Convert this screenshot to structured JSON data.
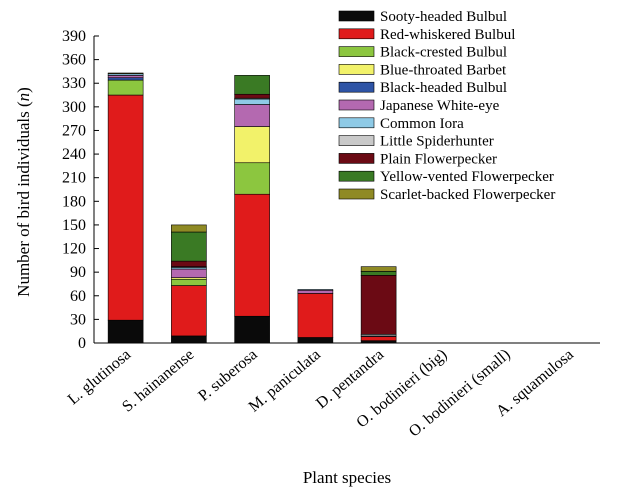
{
  "chart_data": {
    "type": "bar",
    "stacked": true,
    "title": "",
    "xlabel": "Plant species",
    "ylabel_prefix": "Number of  bird individuals (",
    "ylabel_var": "n",
    "ylabel_suffix": ")",
    "ylim": [
      0,
      390
    ],
    "yticks": [
      0,
      30,
      60,
      90,
      120,
      150,
      180,
      210,
      240,
      270,
      300,
      330,
      360,
      390
    ],
    "grid": false,
    "legend_position": "top-right",
    "categories": [
      "L. glutinosa",
      "S. hainanense",
      "P. suberosa",
      "M. paniculata",
      "D. pentandra",
      "O. bodinieri (big)",
      "O. bodinieri (small)",
      "A. squamulosa"
    ],
    "series": [
      {
        "name": "Sooty-headed Bulbul",
        "color": "#0a0a0a",
        "values": [
          29,
          9,
          34,
          7,
          3,
          0,
          0,
          0
        ]
      },
      {
        "name": "Red-whiskered Bulbul",
        "color": "#e01b1b",
        "values": [
          286,
          64,
          155,
          56,
          5,
          0,
          0,
          0
        ]
      },
      {
        "name": "Black-crested Bulbul",
        "color": "#8cc63f",
        "values": [
          19,
          8,
          40,
          0,
          0,
          0,
          0,
          0
        ]
      },
      {
        "name": "Blue-throated Barbet",
        "color": "#f2f26a",
        "values": [
          0,
          2,
          46,
          0,
          0,
          0,
          0,
          0
        ]
      },
      {
        "name": "Black-headed Bulbul",
        "color": "#2e54a6",
        "values": [
          3,
          0,
          0,
          0,
          0,
          0,
          0,
          0
        ]
      },
      {
        "name": "Japanese White-eye",
        "color": "#b469b0",
        "values": [
          3,
          11,
          28,
          4,
          1,
          0,
          0,
          0
        ]
      },
      {
        "name": "Common Iora",
        "color": "#8ecae6",
        "values": [
          2,
          2,
          7,
          1,
          0,
          0,
          0,
          0
        ]
      },
      {
        "name": "Little Spiderhunter",
        "color": "#c9c9c9",
        "values": [
          0,
          1,
          1,
          0,
          2,
          0,
          0,
          0
        ]
      },
      {
        "name": "Plain Flowerpecker",
        "color": "#6b0a14",
        "values": [
          0,
          7,
          5,
          0,
          75,
          0,
          0,
          0
        ]
      },
      {
        "name": "Yellow-vented Flowerpecker",
        "color": "#3a7a24",
        "values": [
          0,
          37,
          24,
          0,
          5,
          0,
          0,
          0
        ]
      },
      {
        "name": "Scarlet-backed Flowerpecker",
        "color": "#8f8a24",
        "values": [
          1,
          9,
          0,
          0,
          6,
          0,
          0,
          0
        ]
      }
    ]
  }
}
